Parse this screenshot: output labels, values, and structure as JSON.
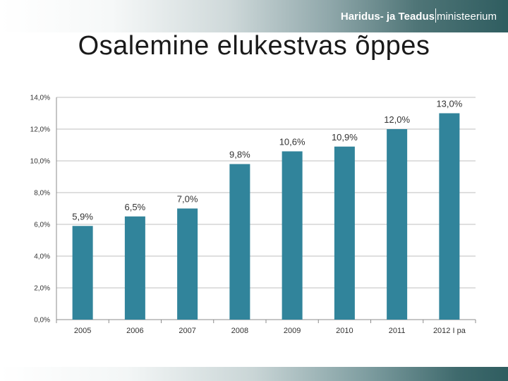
{
  "header": {
    "brand_primary": "Haridus- ja Teadus",
    "brand_secondary": "ministeerium"
  },
  "slide": {
    "title": "Osalemine elukestvas õppes"
  },
  "colors": {
    "bar": "#31849b",
    "grid": "#bfbfbf",
    "axis": "#8c8c8c"
  },
  "chart_data": {
    "type": "bar",
    "categories": [
      "2005",
      "2006",
      "2007",
      "2008",
      "2009",
      "2010",
      "2011",
      "2012 I pa"
    ],
    "values": [
      5.9,
      6.5,
      7.0,
      9.8,
      10.6,
      10.9,
      12.0,
      13.0
    ],
    "data_labels": [
      "5,9%",
      "6,5%",
      "7,0%",
      "9,8%",
      "10,6%",
      "10,9%",
      "12,0%",
      "13,0%"
    ],
    "y_ticks": [
      0,
      2,
      4,
      6,
      8,
      10,
      12,
      14
    ],
    "y_tick_labels": [
      "0,0%",
      "2,0%",
      "4,0%",
      "6,0%",
      "8,0%",
      "10,0%",
      "12,0%",
      "14,0%"
    ],
    "ylim": [
      0,
      14
    ],
    "grid": true,
    "legend": "none"
  }
}
